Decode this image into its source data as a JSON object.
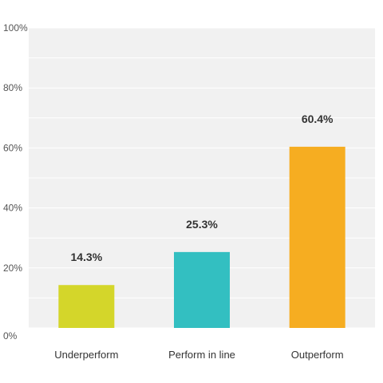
{
  "chart_data": {
    "type": "bar",
    "categories": [
      "Underperform",
      "Perform in line",
      "Outperform"
    ],
    "values": [
      14.3,
      25.3,
      60.4
    ],
    "data_labels": [
      "14.3%",
      "25.3%",
      "60.4%"
    ],
    "colors": [
      "#d4d62a",
      "#33bfc1",
      "#f6ad21"
    ],
    "ylim": [
      0,
      100
    ],
    "yticks": [
      0,
      20,
      40,
      60,
      80,
      100
    ],
    "ytick_labels": [
      "0%",
      "20%",
      "40%",
      "60%",
      "80%",
      "100%"
    ],
    "grid": true,
    "plot_background": "#f1f1f1",
    "grid_color": "#ffffff"
  }
}
